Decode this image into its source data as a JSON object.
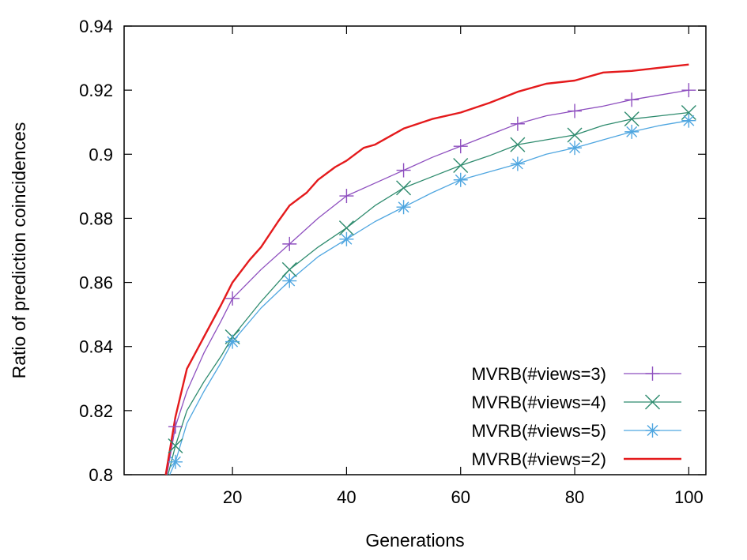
{
  "chart_data": {
    "type": "line",
    "xlabel": "Generations",
    "ylabel": "Ratio of prediction coincidences",
    "xlim": [
      1,
      103
    ],
    "ylim": [
      0.8,
      0.94
    ],
    "xticks": [
      20,
      40,
      60,
      80,
      100
    ],
    "yticks": [
      0.8,
      0.82,
      0.84,
      0.86,
      0.88,
      0.9,
      0.92,
      0.94
    ],
    "xtick_labels": [
      "20",
      "40",
      "60",
      "80",
      "100"
    ],
    "ytick_labels": [
      "0.8",
      "0.82",
      "0.84",
      "0.86",
      "0.88",
      "0.9",
      "0.92",
      "0.94"
    ],
    "grid": false,
    "legend_position": "bottom-right",
    "series": [
      {
        "name": "MVRB(#views=3)",
        "color": "#8e4fbf",
        "marker": "plus",
        "x": [
          8.5,
          10,
          12,
          15,
          18,
          20,
          25,
          30,
          35,
          40,
          45,
          50,
          55,
          60,
          65,
          70,
          75,
          80,
          85,
          90,
          95,
          100
        ],
        "y": [
          0.8,
          0.815,
          0.826,
          0.838,
          0.848,
          0.855,
          0.864,
          0.872,
          0.88,
          0.887,
          0.891,
          0.895,
          0.899,
          0.9025,
          0.906,
          0.9095,
          0.912,
          0.9135,
          0.915,
          0.917,
          0.9185,
          0.92
        ],
        "markers_x": [
          10,
          20,
          30,
          40,
          50,
          60,
          70,
          80,
          90,
          100
        ],
        "markers_y": [
          0.815,
          0.855,
          0.872,
          0.887,
          0.895,
          0.9025,
          0.9095,
          0.9135,
          0.917,
          0.92
        ]
      },
      {
        "name": "MVRB(#views=4)",
        "color": "#2e8b6e",
        "marker": "x",
        "x": [
          8.7,
          10,
          12,
          15,
          18,
          20,
          25,
          30,
          35,
          40,
          45,
          50,
          55,
          60,
          65,
          70,
          75,
          80,
          85,
          90,
          95,
          100
        ],
        "y": [
          0.8,
          0.809,
          0.82,
          0.829,
          0.837,
          0.843,
          0.854,
          0.864,
          0.871,
          0.877,
          0.884,
          0.8895,
          0.893,
          0.8965,
          0.8995,
          0.903,
          0.9045,
          0.906,
          0.909,
          0.911,
          0.912,
          0.913
        ],
        "markers_x": [
          10,
          20,
          30,
          40,
          50,
          60,
          70,
          80,
          90,
          100
        ],
        "markers_y": [
          0.809,
          0.843,
          0.864,
          0.877,
          0.8895,
          0.8965,
          0.903,
          0.906,
          0.911,
          0.913
        ]
      },
      {
        "name": "MVRB(#views=5)",
        "color": "#4fa6e0",
        "marker": "star",
        "x": [
          9,
          10,
          12,
          15,
          18,
          20,
          25,
          30,
          35,
          40,
          45,
          50,
          55,
          60,
          65,
          70,
          75,
          80,
          85,
          90,
          95,
          100
        ],
        "y": [
          0.8,
          0.804,
          0.816,
          0.826,
          0.835,
          0.8415,
          0.852,
          0.8605,
          0.868,
          0.8735,
          0.879,
          0.8835,
          0.888,
          0.892,
          0.8945,
          0.897,
          0.9,
          0.902,
          0.9045,
          0.907,
          0.909,
          0.9105
        ],
        "markers_x": [
          10,
          20,
          30,
          40,
          50,
          60,
          70,
          80,
          90,
          100
        ],
        "markers_y": [
          0.804,
          0.8415,
          0.8605,
          0.8735,
          0.8835,
          0.892,
          0.897,
          0.902,
          0.907,
          0.9105
        ]
      },
      {
        "name": "MVRB(#views=2)",
        "color": "#e41a1c",
        "marker": "none",
        "x": [
          8.3,
          10,
          12,
          15,
          18,
          20,
          23,
          25,
          28,
          30,
          33,
          35,
          38,
          40,
          43,
          45,
          48,
          50,
          55,
          60,
          65,
          70,
          75,
          80,
          85,
          90,
          95,
          100
        ],
        "y": [
          0.8,
          0.818,
          0.833,
          0.843,
          0.853,
          0.86,
          0.867,
          0.871,
          0.879,
          0.884,
          0.888,
          0.892,
          0.896,
          0.898,
          0.902,
          0.903,
          0.906,
          0.908,
          0.911,
          0.913,
          0.916,
          0.9195,
          0.922,
          0.923,
          0.9255,
          0.926,
          0.927,
          0.928
        ],
        "markers_x": [],
        "markers_y": []
      }
    ],
    "legend_order": [
      "MVRB(#views=3)",
      "MVRB(#views=4)",
      "MVRB(#views=5)",
      "MVRB(#views=2)"
    ]
  }
}
